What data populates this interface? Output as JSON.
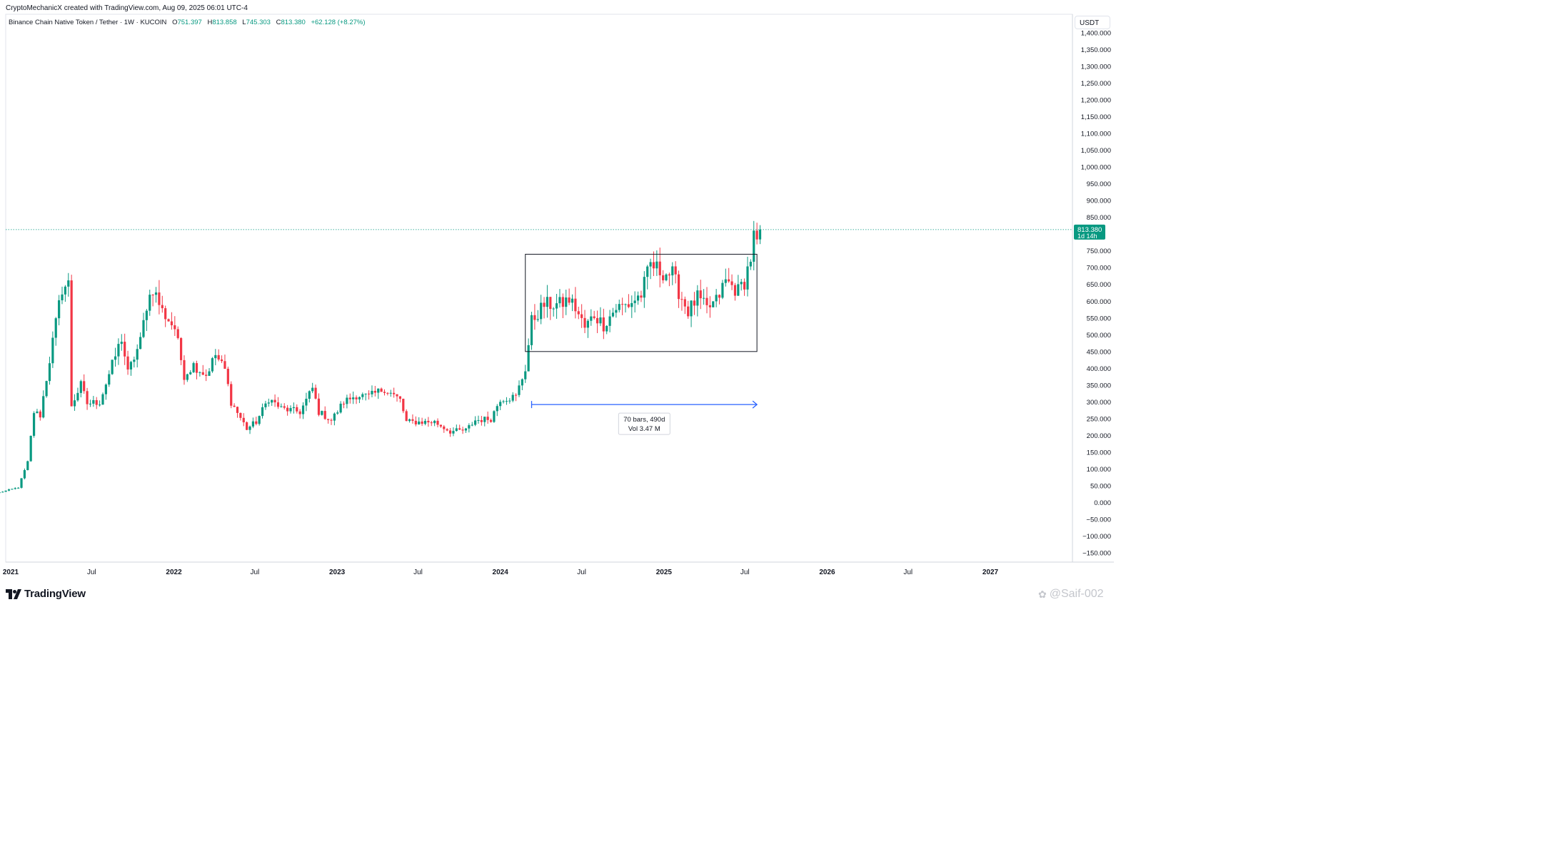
{
  "header": {
    "credit": "CryptoMechanicX created with TradingView.com, Aug 09, 2025 06:01 UTC-4",
    "symbol": "Binance Chain Native Token / Tether · 1W · KUCOIN",
    "ohlc": {
      "o_label": "O",
      "o_value": "751.397",
      "h_label": "H",
      "h_value": "813.858",
      "l_label": "L",
      "l_value": "745.303",
      "c_label": "C",
      "c_value": "813.380",
      "change": "+62.128 (+8.27%)"
    },
    "currency": "USDT"
  },
  "price_label": {
    "value": "813.380",
    "countdown": "1d 14h"
  },
  "measure": {
    "bars": "70 bars, 490d",
    "volume": "Vol 3.47 M"
  },
  "branding": {
    "logo_text": "TradingView",
    "watermark": "@Saif-002"
  },
  "colors": {
    "up": "#089981",
    "down": "#f23645",
    "measure": "#2962ff",
    "text": "#131722"
  },
  "chart_data": {
    "type": "candlestick",
    "timeframe": "1W",
    "yaxis": {
      "ticks": [
        1400,
        1350,
        1300,
        1250,
        1200,
        1150,
        1100,
        1050,
        1000,
        950,
        900,
        850,
        750,
        700,
        650,
        600,
        550,
        500,
        450,
        400,
        350,
        300,
        250,
        200,
        150,
        100,
        50,
        0,
        -50,
        -100,
        -150
      ],
      "tick_labels": [
        "1,400.000",
        "1,350.000",
        "1,300.000",
        "1,250.000",
        "1,200.000",
        "1,150.000",
        "1,100.000",
        "1,050.000",
        "1,000.000",
        "950.000",
        "900.000",
        "850.000",
        "750.000",
        "700.000",
        "650.000",
        "600.000",
        "550.000",
        "500.000",
        "450.000",
        "400.000",
        "350.000",
        "300.000",
        "250.000",
        "200.000",
        "150.000",
        "100.000",
        "50.000",
        "0.000",
        "−50.000",
        "−100.000",
        "−150.000"
      ],
      "ylim": [
        -170,
        1420
      ]
    },
    "xaxis": {
      "ticks": [
        {
          "label": "2021",
          "date": "2021-01-01",
          "bold": true
        },
        {
          "label": "Jul",
          "date": "2021-07-01",
          "bold": false
        },
        {
          "label": "2022",
          "date": "2022-01-01",
          "bold": true
        },
        {
          "label": "Jul",
          "date": "2022-07-01",
          "bold": false
        },
        {
          "label": "2023",
          "date": "2023-01-01",
          "bold": true
        },
        {
          "label": "Jul",
          "date": "2023-07-01",
          "bold": false
        },
        {
          "label": "2024",
          "date": "2024-01-01",
          "bold": true
        },
        {
          "label": "Jul",
          "date": "2024-07-01",
          "bold": false
        },
        {
          "label": "2025",
          "date": "2025-01-01",
          "bold": true
        },
        {
          "label": "Jul",
          "date": "2025-07-01",
          "bold": false
        },
        {
          "label": "2026",
          "date": "2026-01-01",
          "bold": true
        },
        {
          "label": "Jul",
          "date": "2026-07-01",
          "bold": false
        },
        {
          "label": "2027",
          "date": "2027-01-01",
          "bold": true
        }
      ]
    },
    "anchors": [
      {
        "date": "2020-12-07",
        "price": 30
      },
      {
        "date": "2021-01-18",
        "price": 45
      },
      {
        "date": "2021-02-08",
        "price": 120
      },
      {
        "date": "2021-02-22",
        "price": 270
      },
      {
        "date": "2021-03-08",
        "price": 260
      },
      {
        "date": "2021-04-05",
        "price": 480
      },
      {
        "date": "2021-04-26",
        "price": 640
      },
      {
        "date": "2021-05-10",
        "price": 650
      },
      {
        "date": "2021-05-17",
        "price": 290
      },
      {
        "date": "2021-06-07",
        "price": 350
      },
      {
        "date": "2021-06-21",
        "price": 295
      },
      {
        "date": "2021-07-19",
        "price": 300
      },
      {
        "date": "2021-08-16",
        "price": 410
      },
      {
        "date": "2021-09-06",
        "price": 490
      },
      {
        "date": "2021-09-20",
        "price": 385
      },
      {
        "date": "2021-10-18",
        "price": 480
      },
      {
        "date": "2021-11-01",
        "price": 590
      },
      {
        "date": "2021-11-15",
        "price": 640
      },
      {
        "date": "2021-12-06",
        "price": 570
      },
      {
        "date": "2022-01-03",
        "price": 520
      },
      {
        "date": "2022-01-24",
        "price": 380
      },
      {
        "date": "2022-02-14",
        "price": 410
      },
      {
        "date": "2022-03-14",
        "price": 380
      },
      {
        "date": "2022-04-04",
        "price": 440
      },
      {
        "date": "2022-04-25",
        "price": 395
      },
      {
        "date": "2022-05-09",
        "price": 300
      },
      {
        "date": "2022-06-13",
        "price": 220
      },
      {
        "date": "2022-07-04",
        "price": 240
      },
      {
        "date": "2022-08-01",
        "price": 310
      },
      {
        "date": "2022-08-29",
        "price": 280
      },
      {
        "date": "2022-10-10",
        "price": 270
      },
      {
        "date": "2022-11-07",
        "price": 340
      },
      {
        "date": "2022-11-21",
        "price": 270
      },
      {
        "date": "2022-12-19",
        "price": 245
      },
      {
        "date": "2023-01-16",
        "price": 300
      },
      {
        "date": "2023-02-13",
        "price": 320
      },
      {
        "date": "2023-03-13",
        "price": 315
      },
      {
        "date": "2023-04-17",
        "price": 340
      },
      {
        "date": "2023-05-22",
        "price": 305
      },
      {
        "date": "2023-06-05",
        "price": 240
      },
      {
        "date": "2023-07-10",
        "price": 240
      },
      {
        "date": "2023-08-07",
        "price": 240
      },
      {
        "date": "2023-09-11",
        "price": 212
      },
      {
        "date": "2023-10-16",
        "price": 215
      },
      {
        "date": "2023-11-06",
        "price": 245
      },
      {
        "date": "2023-12-11",
        "price": 250
      },
      {
        "date": "2024-01-01",
        "price": 310
      },
      {
        "date": "2024-02-05",
        "price": 315
      },
      {
        "date": "2024-02-26",
        "price": 400
      },
      {
        "date": "2024-03-11",
        "price": 540
      },
      {
        "date": "2024-04-08",
        "price": 590
      },
      {
        "date": "2024-05-13",
        "price": 590
      },
      {
        "date": "2024-06-03",
        "price": 605
      },
      {
        "date": "2024-06-17",
        "price": 580
      },
      {
        "date": "2024-07-08",
        "price": 520
      },
      {
        "date": "2024-07-29",
        "price": 560
      },
      {
        "date": "2024-08-19",
        "price": 530
      },
      {
        "date": "2024-09-16",
        "price": 580
      },
      {
        "date": "2024-10-14",
        "price": 590
      },
      {
        "date": "2024-11-11",
        "price": 620
      },
      {
        "date": "2024-12-02",
        "price": 710
      },
      {
        "date": "2024-12-23",
        "price": 690
      },
      {
        "date": "2025-01-20",
        "price": 680
      },
      {
        "date": "2025-02-03",
        "price": 630
      },
      {
        "date": "2025-02-24",
        "price": 570
      },
      {
        "date": "2025-03-17",
        "price": 610
      },
      {
        "date": "2025-04-07",
        "price": 575
      },
      {
        "date": "2025-04-28",
        "price": 600
      },
      {
        "date": "2025-05-19",
        "price": 660
      },
      {
        "date": "2025-06-16",
        "price": 630
      },
      {
        "date": "2025-06-30",
        "price": 660
      },
      {
        "date": "2025-07-14",
        "price": 730
      },
      {
        "date": "2025-07-21",
        "price": 790
      },
      {
        "date": "2025-07-28",
        "price": 770
      },
      {
        "date": "2025-08-04",
        "price": 813.38
      }
    ],
    "rectangle": {
      "start": "2024-02-26",
      "end": "2025-07-28",
      "top": 740,
      "bottom": 450
    },
    "measure_arrow": {
      "start": "2024-03-11",
      "end": "2025-07-28",
      "price": 292
    },
    "last_price": 813.38
  }
}
